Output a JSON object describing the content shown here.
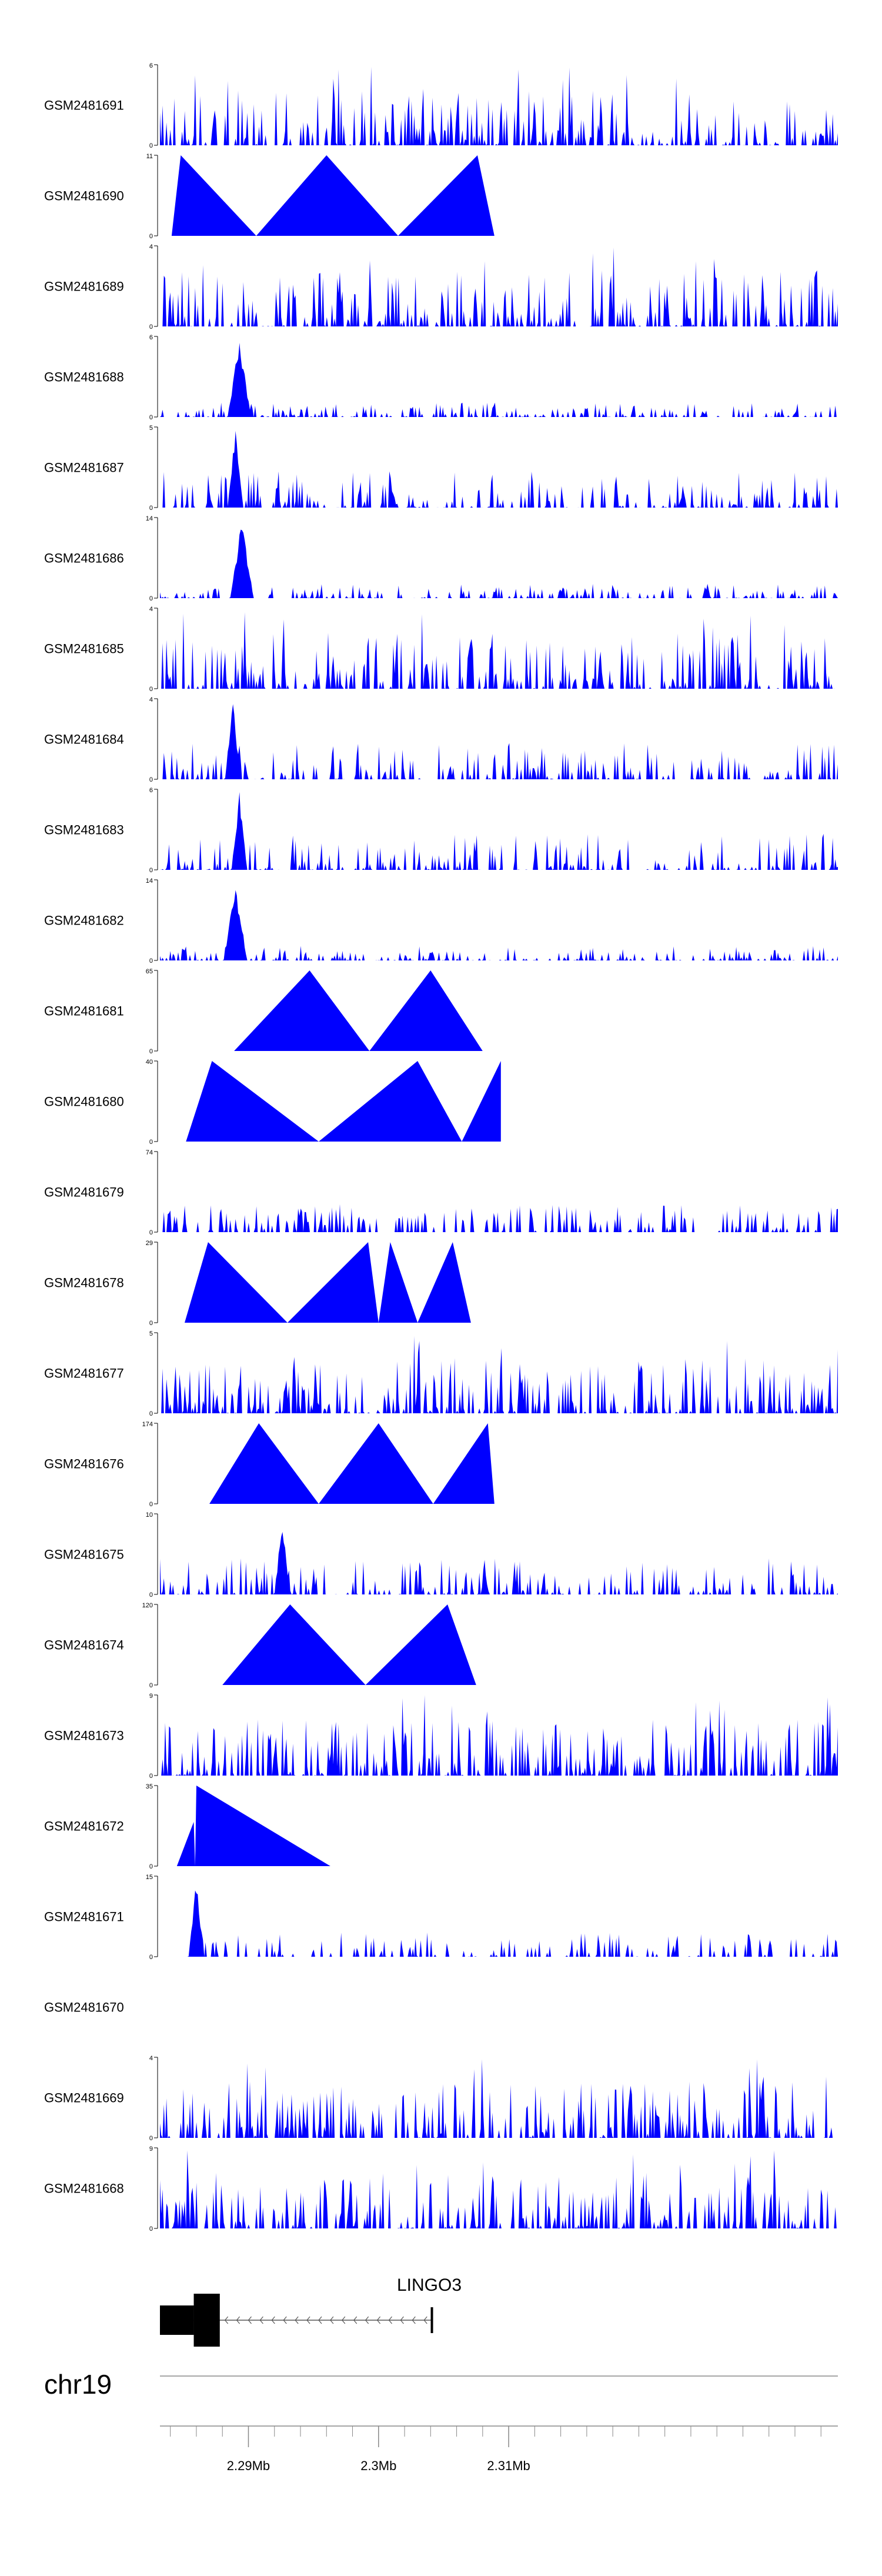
{
  "colors": {
    "track": "#0000ff",
    "axis": "#000000",
    "gene": "#000000",
    "intron": "#555555",
    "chromosome_line": "#888888"
  },
  "chart_data": {
    "type": "area",
    "title": "",
    "xlabel": "",
    "ylabel": "",
    "chromosome": "chr19",
    "x_range_mb": [
      2.2832,
      2.3353
    ],
    "x_ticks": [
      {
        "value": 2.29,
        "label": "2.29Mb"
      },
      {
        "value": 2.3,
        "label": "2.3Mb"
      },
      {
        "value": 2.31,
        "label": "2.31Mb"
      }
    ],
    "gene": {
      "name": "LINGO3",
      "strand": "-",
      "start_mb": 2.2832,
      "end_mb": 2.3041,
      "exons": [
        [
          2.2832,
          2.2858
        ],
        [
          2.2858,
          2.2878
        ]
      ]
    },
    "tracks": [
      {
        "sample": "GSM2481691",
        "ymax": 6,
        "pattern": "dense",
        "seed": 1
      },
      {
        "sample": "GSM2481690",
        "ymax": 11,
        "peaks": [
          [
            2.2841,
            0
          ],
          [
            2.2848,
            1.0
          ],
          [
            2.2906,
            0
          ],
          [
            2.296,
            1.0
          ],
          [
            2.3015,
            0
          ],
          [
            2.3076,
            1.0
          ],
          [
            2.3089,
            0
          ]
        ]
      },
      {
        "sample": "GSM2481689",
        "ymax": 4,
        "pattern": "dense",
        "seed": 2
      },
      {
        "sample": "GSM2481688",
        "ymax": 6,
        "pattern": "spike",
        "spike_at": 2.2893,
        "seed": 3
      },
      {
        "sample": "GSM2481687",
        "ymax": 5,
        "pattern": "spike_low",
        "spike_at": 2.289,
        "seed": 4
      },
      {
        "sample": "GSM2481686",
        "ymax": 14,
        "pattern": "spike",
        "spike_at": 2.2895,
        "seed": 5
      },
      {
        "sample": "GSM2481685",
        "ymax": 4,
        "pattern": "dense",
        "seed": 6
      },
      {
        "sample": "GSM2481684",
        "ymax": 4,
        "pattern": "spike_low",
        "spike_at": 2.2888,
        "seed": 7
      },
      {
        "sample": "GSM2481683",
        "ymax": 6,
        "pattern": "spike_low",
        "spike_at": 2.2893,
        "seed": 8
      },
      {
        "sample": "GSM2481682",
        "ymax": 14,
        "pattern": "spike",
        "spike_at": 2.289,
        "seed": 9
      },
      {
        "sample": "GSM2481681",
        "ymax": 65,
        "peaks": [
          [
            2.2889,
            0
          ],
          [
            2.2947,
            1.0
          ],
          [
            2.2993,
            0
          ],
          [
            2.304,
            1.0
          ],
          [
            2.308,
            0
          ]
        ]
      },
      {
        "sample": "GSM2481680",
        "ymax": 40,
        "peaks": [
          [
            2.2852,
            0
          ],
          [
            2.2872,
            1.0
          ],
          [
            2.2954,
            0
          ],
          [
            2.303,
            1.0
          ],
          [
            2.3064,
            0
          ],
          [
            2.3094,
            1.0
          ]
        ]
      },
      {
        "sample": "GSM2481679",
        "ymax": 74,
        "pattern": "bumps",
        "seed": 10
      },
      {
        "sample": "GSM2481678",
        "ymax": 29,
        "peaks": [
          [
            2.2851,
            0
          ],
          [
            2.2869,
            1.0
          ],
          [
            2.293,
            0
          ],
          [
            2.2992,
            1.0
          ],
          [
            2.3,
            0
          ],
          [
            2.3009,
            1.0
          ],
          [
            2.303,
            0
          ],
          [
            2.3057,
            1.0
          ],
          [
            2.3071,
            0
          ]
        ]
      },
      {
        "sample": "GSM2481677",
        "ymax": 5,
        "pattern": "dense",
        "seed": 11
      },
      {
        "sample": "GSM2481676",
        "ymax": 174,
        "peaks": [
          [
            2.287,
            0
          ],
          [
            2.2908,
            1.0
          ],
          [
            2.2954,
            0
          ],
          [
            2.3,
            1.0
          ],
          [
            2.3042,
            0
          ],
          [
            2.3084,
            1.0
          ],
          [
            2.3089,
            0
          ]
        ]
      },
      {
        "sample": "GSM2481675",
        "ymax": 10,
        "pattern": "spike_mid",
        "spike_at": 2.2926,
        "seed": 12
      },
      {
        "sample": "GSM2481674",
        "ymax": 120,
        "peaks": [
          [
            2.288,
            0
          ],
          [
            2.2932,
            1.0
          ],
          [
            2.299,
            0
          ],
          [
            2.3053,
            1.0
          ],
          [
            2.3075,
            0
          ]
        ]
      },
      {
        "sample": "GSM2481673",
        "ymax": 9,
        "pattern": "dense",
        "seed": 13
      },
      {
        "sample": "GSM2481672",
        "ymax": 35,
        "peaks": [
          [
            2.2845,
            0
          ],
          [
            2.2858,
            0.55
          ],
          [
            2.2859,
            0.0
          ],
          [
            2.286,
            1.0
          ],
          [
            2.2963,
            0
          ]
        ]
      },
      {
        "sample": "GSM2481671",
        "ymax": 15,
        "pattern": "sparse_spike",
        "spike_at": 2.286,
        "seed": 14
      },
      {
        "sample": "GSM2481670",
        "ymax": null
      },
      {
        "sample": "GSM2481669",
        "ymax": 4,
        "pattern": "dense",
        "seed": 15
      },
      {
        "sample": "GSM2481668",
        "ymax": 9,
        "pattern": "dense",
        "seed": 16
      }
    ]
  }
}
